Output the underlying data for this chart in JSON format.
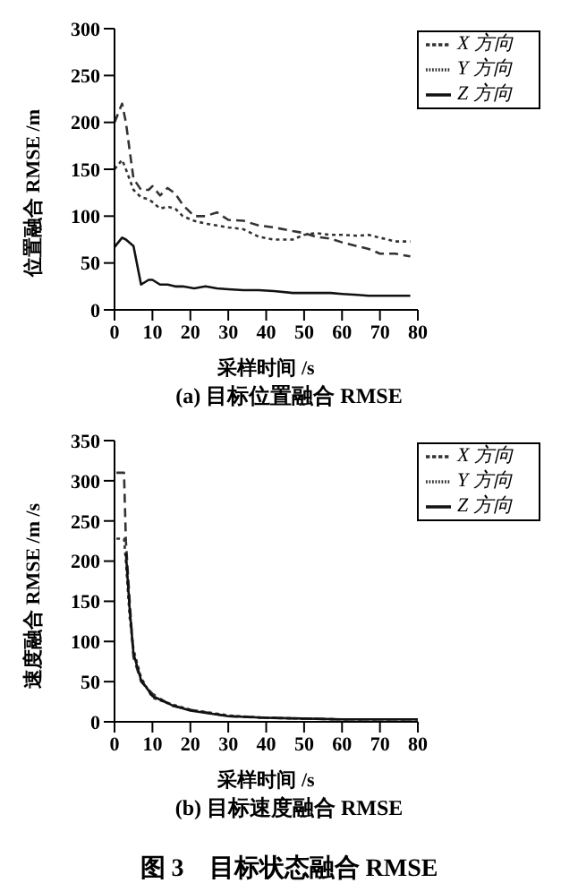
{
  "chart_data": [
    {
      "type": "line",
      "title": "(a) 目标位置融合 RMSE",
      "xlabel": "采样时间 /s",
      "ylabel": "位置融合 RMSE /m",
      "xlim": [
        0,
        80
      ],
      "xticks": [
        0,
        10,
        20,
        30,
        40,
        50,
        60,
        70,
        80
      ],
      "ylim": [
        0,
        300
      ],
      "yticks": [
        0,
        50,
        100,
        150,
        200,
        250,
        300
      ],
      "legend": "top right",
      "marker": "none",
      "x": [
        0,
        2,
        3,
        5,
        7,
        9,
        10,
        12,
        14,
        16,
        18,
        21,
        24,
        27,
        30,
        34,
        38,
        42,
        47,
        50,
        53,
        57,
        60,
        64,
        67,
        70,
        74,
        78
      ],
      "series": [
        {
          "name": "X 方向",
          "color": "#333333",
          "line_style": "dashed",
          "values": [
            200,
            220,
            200,
            140,
            128,
            128,
            132,
            122,
            130,
            124,
            112,
            100,
            100,
            104,
            96,
            95,
            90,
            88,
            84,
            82,
            78,
            76,
            72,
            68,
            65,
            60,
            60,
            57
          ]
        },
        {
          "name": "Y 方向",
          "color": "#333333",
          "line_style": "dotted",
          "values": [
            150,
            160,
            150,
            128,
            120,
            118,
            115,
            108,
            110,
            108,
            100,
            95,
            92,
            90,
            88,
            86,
            78,
            75,
            75,
            80,
            82,
            80,
            80,
            79,
            80,
            77,
            73,
            73
          ]
        },
        {
          "name": "Z 方向",
          "color": "#111111",
          "line_style": "solid",
          "values": [
            67,
            77,
            75,
            68,
            27,
            32,
            32,
            27,
            27,
            25,
            25,
            23,
            25,
            23,
            22,
            21,
            21,
            20,
            18,
            18,
            18,
            18,
            17,
            16,
            15,
            15,
            15,
            15
          ]
        }
      ]
    },
    {
      "type": "line",
      "title": "(b) 目标速度融合 RMSE",
      "xlabel": "采样时间 /s",
      "ylabel": "速度融合 RMSE /m /s",
      "xlim": [
        0,
        80
      ],
      "xticks": [
        0,
        10,
        20,
        30,
        40,
        50,
        60,
        70,
        80
      ],
      "ylim": [
        0,
        350
      ],
      "yticks": [
        0,
        50,
        100,
        150,
        200,
        250,
        300,
        350
      ],
      "legend": "top right",
      "marker": "none",
      "annotations": [
        "图 3　目标状态融合 RMSE"
      ],
      "x": [
        0.5,
        2.5,
        3,
        4,
        5,
        7,
        10,
        15,
        20,
        30,
        40,
        50,
        60,
        70,
        80
      ],
      "series": [
        {
          "name": "X 方向",
          "color": "#333333",
          "line_style": "dashed",
          "values": [
            310,
            310,
            225,
            150,
            80,
            50,
            35,
            20,
            15,
            7,
            5,
            4,
            3,
            3,
            3
          ]
        },
        {
          "name": "Y 方向",
          "color": "#333333",
          "line_style": "dotted",
          "values": [
            228,
            228,
            200,
            130,
            90,
            55,
            30,
            22,
            15,
            8,
            5,
            4,
            3,
            3,
            3
          ]
        },
        {
          "name": "Z 方向",
          "color": "#111111",
          "line_style": "solid",
          "values": [
            null,
            null,
            210,
            140,
            85,
            52,
            32,
            21,
            14,
            7,
            5,
            4,
            3,
            3,
            3
          ]
        }
      ]
    }
  ]
}
